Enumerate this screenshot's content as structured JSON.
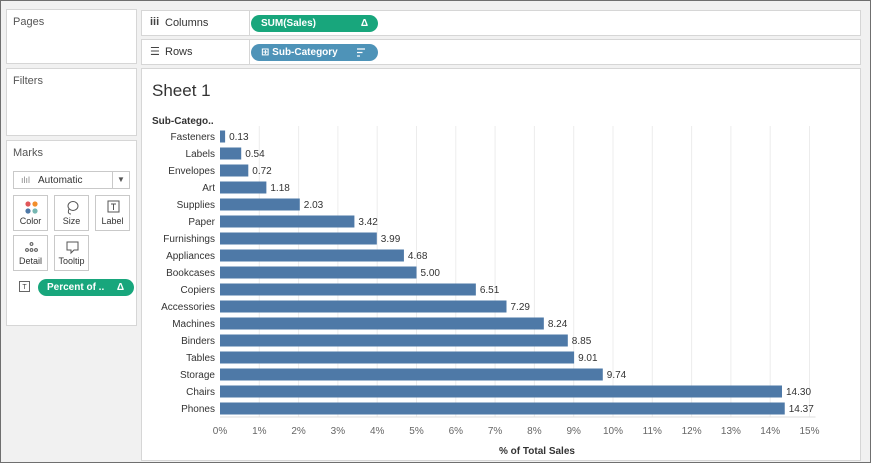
{
  "panels": {
    "pages_title": "Pages",
    "filters_title": "Filters",
    "marks": {
      "title": "Marks",
      "type_value": "Automatic",
      "buttons": {
        "color": "Color",
        "size": "Size",
        "label": "Label",
        "detail": "Detail",
        "tooltip": "Tooltip"
      },
      "pill_label": "Percent of ..",
      "pill_delta": "Δ"
    }
  },
  "shelves": {
    "columns_label": "Columns",
    "columns_pill": "SUM(Sales)",
    "columns_pill_delta": "Δ",
    "rows_label": "Rows",
    "rows_pill": "Sub-Category",
    "rows_pill_icon": "⊞",
    "rows_pill_sort_icon": "sort-descending-icon"
  },
  "sheet": {
    "title": "Sheet 1"
  },
  "colors": {
    "bar": "#4e79a7",
    "pill_green": "#18a67c",
    "pill_blue": "#4e93b8"
  },
  "chart_data": {
    "type": "bar",
    "orientation": "horizontal",
    "row_header": "Sub-Catego..",
    "categories": [
      "Fasteners",
      "Labels",
      "Envelopes",
      "Art",
      "Supplies",
      "Paper",
      "Furnishings",
      "Appliances",
      "Bookcases",
      "Copiers",
      "Accessories",
      "Machines",
      "Binders",
      "Tables",
      "Storage",
      "Chairs",
      "Phones"
    ],
    "values": [
      0.13,
      0.54,
      0.72,
      1.18,
      2.03,
      3.42,
      3.99,
      4.68,
      5.0,
      6.51,
      7.29,
      8.24,
      8.85,
      9.01,
      9.74,
      14.3,
      14.37
    ],
    "value_labels": [
      "0.13",
      "0.54",
      "0.72",
      "1.18",
      "2.03",
      "3.42",
      "3.99",
      "4.68",
      "5.00",
      "6.51",
      "7.29",
      "8.24",
      "8.85",
      "9.01",
      "9.74",
      "14.30",
      "14.37"
    ],
    "xlabel": "% of Total Sales",
    "xlim": [
      0,
      15
    ],
    "xticks": [
      "0%",
      "1%",
      "2%",
      "3%",
      "4%",
      "5%",
      "6%",
      "7%",
      "8%",
      "9%",
      "10%",
      "11%",
      "12%",
      "13%",
      "14%",
      "15%"
    ],
    "grid": true
  }
}
